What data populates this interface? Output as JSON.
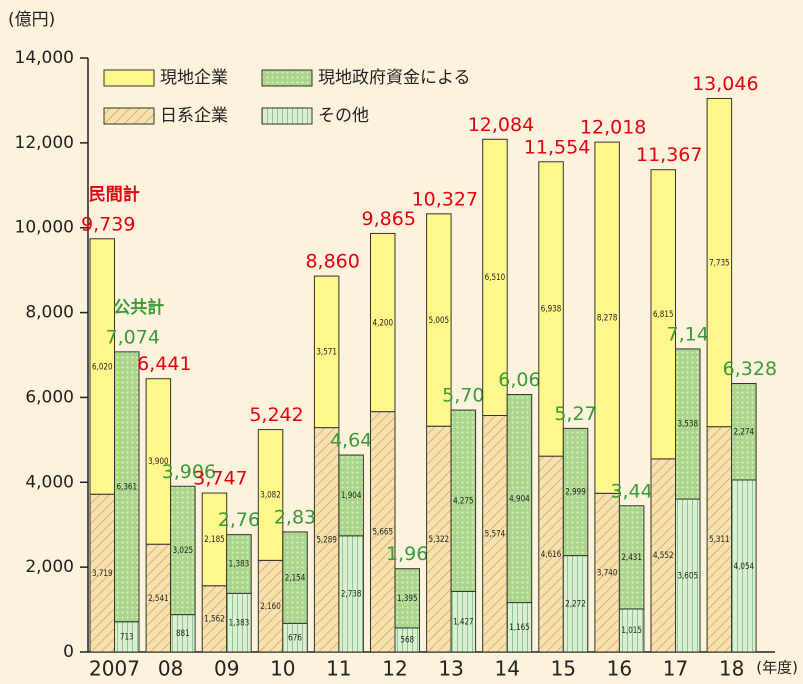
{
  "chart_data": {
    "type": "stacked_grouped_bar",
    "y_label": "(億円)",
    "x_label": "(年度)",
    "categories": [
      "2007",
      "08",
      "09",
      "10",
      "11",
      "12",
      "13",
      "14",
      "15",
      "16",
      "17",
      "18"
    ],
    "ylim": [
      0,
      14000
    ],
    "yticks": [
      0,
      {
        "value": 2000,
        "label": "2,000"
      },
      {
        "value": 4000,
        "label": "4,000"
      },
      {
        "value": 6000,
        "label": "6,000"
      },
      {
        "value": 8000,
        "label": "8,000"
      },
      {
        "value": 10000,
        "label": "10,000"
      },
      {
        "value": 12000,
        "label": "12,000"
      },
      {
        "value": 14000,
        "label": "14,000"
      }
    ],
    "series": [
      {
        "name": "日系企業",
        "stack": "private",
        "color": "#f6e2b0",
        "pattern": "hatch",
        "values": [
          3719,
          2541,
          1562,
          2160,
          5289,
          5665,
          5322,
          5574,
          4616,
          3740,
          4552,
          5311
        ],
        "value_labels": [
          "3,719",
          "2,541",
          "1,562",
          "2,160",
          "5,289",
          "5,665",
          "5,322",
          "5,574",
          "4,616",
          "3,740",
          "4,552",
          "5,311"
        ]
      },
      {
        "name": "現地企業",
        "stack": "private",
        "color": "#fff68c",
        "pattern": "solid",
        "values": [
          6020,
          3900,
          2185,
          3082,
          3571,
          4200,
          5005,
          6510,
          6938,
          8278,
          6815,
          7735
        ],
        "value_labels": [
          "6,020",
          "3,900",
          "2,185",
          "3,082",
          "3,571",
          "4,200",
          "5,005",
          "6,510",
          "6,938",
          "8,278",
          "6,815",
          "7,735"
        ]
      },
      {
        "name": "その他",
        "stack": "public",
        "color": "#dcf0cf",
        "pattern": "stripes",
        "values": [
          713,
          881,
          1383,
          676,
          2738,
          568,
          1427,
          1165,
          2272,
          1015,
          3605,
          4054
        ],
        "value_labels": [
          "713",
          "881",
          "1,383",
          "676",
          "2,738",
          "568",
          "1,427",
          "1,165",
          "2,272",
          "1,015",
          "3,605",
          "4,054"
        ]
      },
      {
        "name": "現地政府資金による",
        "stack": "public",
        "color": "#a9d58c",
        "pattern": "dots",
        "values": [
          6361,
          3025,
          1383,
          2154,
          1904,
          1395,
          4275,
          4904,
          2999,
          2431,
          3538,
          2274
        ],
        "value_labels": [
          "6,361",
          "3,025",
          "1,383",
          "2,154",
          "1,904",
          "1,395",
          "4,275",
          "4,904",
          "2,999",
          "2,431",
          "3,538",
          "2,274"
        ]
      }
    ],
    "totals": [
      {
        "name": "民間計",
        "stack": "private",
        "color": "#e60012",
        "values": [
          9739,
          6441,
          3747,
          5242,
          8860,
          9865,
          10327,
          12084,
          11554,
          12018,
          11367,
          13046
        ],
        "value_labels": [
          "9,739",
          "6,441",
          "3,747",
          "5,242",
          "8,860",
          "9,865",
          "10,327",
          "12,084",
          "11,554",
          "12,018",
          "11,367",
          "13,046"
        ]
      },
      {
        "name": "公共計",
        "stack": "public",
        "color": "#3a9a3a",
        "values": [
          7074,
          3906,
          2766,
          2830,
          4642,
          1963,
          5702,
          6069,
          5271,
          3446,
          7143,
          6328
        ],
        "value_labels": [
          "7,074",
          "3,906",
          "2,766",
          "2,830",
          "4,642",
          "1,963",
          "5,702",
          "6,069",
          "5,271",
          "3,446",
          "7,143",
          "6,328"
        ]
      }
    ]
  }
}
